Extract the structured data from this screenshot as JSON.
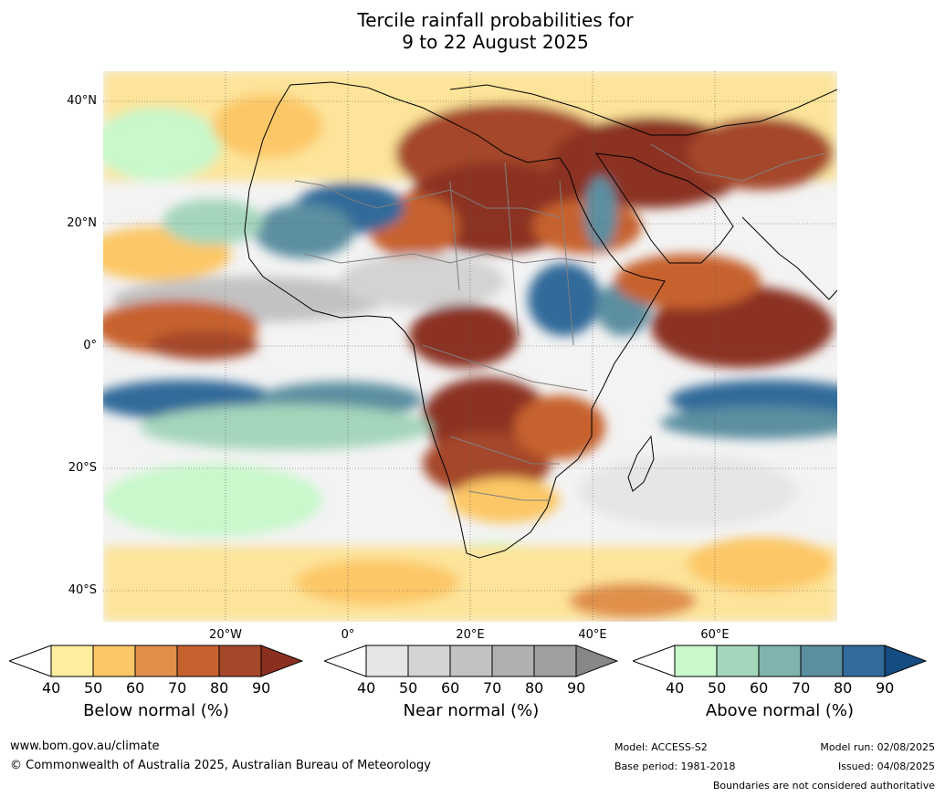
{
  "title_line1": "Tercile rainfall probabilities for",
  "title_line2": "9 to 22 August 2025",
  "map": {
    "lat_labels": [
      "40°N",
      "20°N",
      "0°",
      "20°S",
      "40°S"
    ],
    "lon_labels": [
      "20°W",
      "0°",
      "20°E",
      "40°E",
      "60°E"
    ]
  },
  "colorbars": [
    {
      "title": "Below normal (%)",
      "ticks": [
        "40",
        "50",
        "60",
        "70",
        "80",
        "90"
      ],
      "colors": [
        "#ffffff",
        "#feeea0",
        "#fcc766",
        "#e0904b",
        "#c7622f",
        "#a5472a",
        "#8b3020"
      ]
    },
    {
      "title": "Near normal (%)",
      "ticks": [
        "40",
        "50",
        "60",
        "70",
        "80",
        "90"
      ],
      "colors": [
        "#ffffff",
        "#e6e6e6",
        "#d3d3d3",
        "#c2c2c2",
        "#b0b0b0",
        "#a0a0a0",
        "#878787"
      ]
    },
    {
      "title": "Above normal (%)",
      "ticks": [
        "40",
        "50",
        "60",
        "70",
        "80",
        "90"
      ],
      "colors": [
        "#ffffff",
        "#c8f8cb",
        "#a4d6bb",
        "#7fb3ae",
        "#5b8fa0",
        "#336b9a",
        "#154d82"
      ]
    }
  ],
  "footer": {
    "website": "www.bom.gov.au/climate",
    "copyright": "© Commonwealth of Australia 2025, Australian Bureau of Meteorology",
    "model": "Model: ACCESS-S2",
    "base_period": "Base period: 1981-2018",
    "model_run": "Model run: 02/08/2025",
    "issued": "Issued: 04/08/2025",
    "boundaries_note": "Boundaries are not considered authoritative"
  }
}
